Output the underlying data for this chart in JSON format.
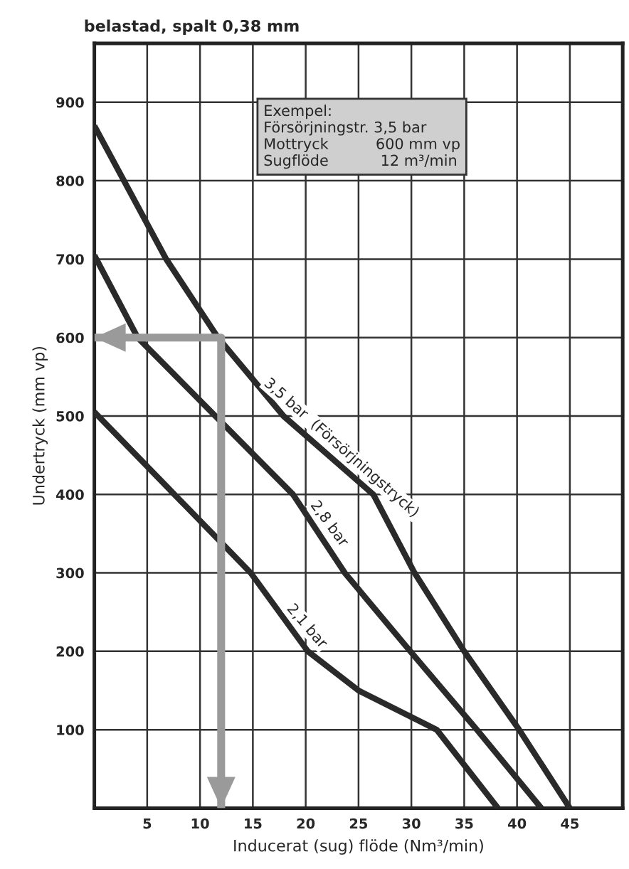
{
  "chart_data": {
    "type": "line",
    "title": "belastad, spalt 0,38 mm",
    "xlabel": "Inducerat (sug) flöde (Nm³/min)",
    "ylabel": "Undertryck (mm vp)",
    "xlim": [
      0,
      50
    ],
    "ylim": [
      0,
      975
    ],
    "xticks": [
      5,
      10,
      15,
      20,
      25,
      30,
      35,
      40,
      45
    ],
    "yticks": [
      100,
      200,
      300,
      400,
      500,
      600,
      700,
      800,
      900
    ],
    "grid": true,
    "legend": false,
    "marker": "none",
    "line_style": "solid",
    "annotations": [
      "Exempel:\nFörsörjningstr. 3,5 bar\nMottryck          600 mm vp\nSugflöde           12 m³/min"
    ],
    "series": [
      {
        "name": "3,5 bar  (Försörjningstryck)",
        "color": "#2a2a2a",
        "x": [
          0,
          6.8,
          11.7,
          17.9,
          26.4,
          30.3,
          35,
          40.2,
          45
        ],
        "values": [
          870,
          700,
          600,
          500,
          400,
          300,
          200,
          100,
          0
        ]
      },
      {
        "name": "2,8 bar",
        "color": "#2a2a2a",
        "x": [
          0,
          4.1,
          18.8,
          23.7,
          29.9,
          36.2,
          42.3
        ],
        "values": [
          705,
          600,
          400,
          300,
          200,
          100,
          0
        ]
      },
      {
        "name": "2,1 bar",
        "color": "#2a2a2a",
        "x": [
          0,
          14.8,
          20.2,
          25,
          32.4,
          35.3,
          38.2
        ],
        "values": [
          505,
          300,
          200,
          150,
          100,
          50,
          0
        ]
      },
      {
        "color": "#9a9a9a",
        "x": [
          0,
          12,
          12
        ],
        "values": [
          600,
          600,
          0
        ]
      }
    ]
  }
}
